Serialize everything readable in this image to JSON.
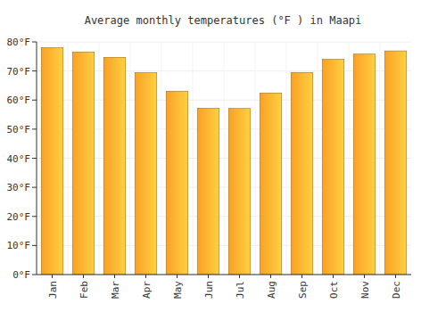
{
  "chart_data": {
    "type": "bar",
    "title": "Average monthly temperatures (°F ) in Maapi",
    "categories": [
      "Jan",
      "Feb",
      "Mar",
      "Apr",
      "May",
      "Jun",
      "Jul",
      "Aug",
      "Sep",
      "Oct",
      "Nov",
      "Dec"
    ],
    "values": [
      78,
      76.5,
      74.7,
      69.4,
      63,
      57.2,
      57.1,
      62.4,
      69.5,
      74,
      75.8,
      76.9
    ],
    "color": "#f9a126",
    "ylim": [
      0,
      80
    ],
    "yticks": [
      {
        "value": 0,
        "label": "0°F"
      },
      {
        "value": 10,
        "label": "10°F"
      },
      {
        "value": 20,
        "label": "20°F"
      },
      {
        "value": 30,
        "label": "30°F"
      },
      {
        "value": 40,
        "label": "40°F"
      },
      {
        "value": 50,
        "label": "50°F"
      },
      {
        "value": 60,
        "label": "60°F"
      },
      {
        "value": 70,
        "label": "70°F"
      },
      {
        "value": 80,
        "label": "80°F"
      }
    ],
    "grid": true
  }
}
